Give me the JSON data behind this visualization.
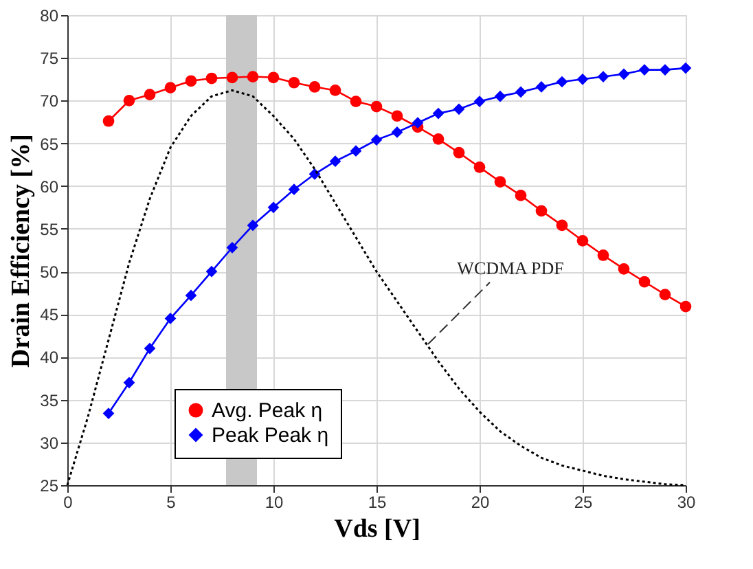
{
  "chart_data": {
    "type": "line",
    "xlabel": "Vds [V]",
    "ylabel": "Drain Efficiency [%]",
    "xlim": [
      0,
      30
    ],
    "ylim": [
      25,
      80
    ],
    "xticks": [
      0,
      5,
      10,
      15,
      20,
      25,
      30
    ],
    "yticks": [
      25,
      30,
      35,
      40,
      45,
      50,
      55,
      60,
      65,
      70,
      75,
      80
    ],
    "grid": true,
    "legend": "bottom left",
    "series": [
      {
        "name": "Avg. Peak η",
        "color": "#ff0000",
        "marker": "circle",
        "line_style": "solid",
        "x": [
          2,
          3,
          4,
          5,
          6,
          7,
          8,
          9,
          10,
          11,
          12,
          13,
          14,
          15,
          16,
          17,
          18,
          19,
          20,
          21,
          22,
          23,
          24,
          25,
          26,
          27,
          28,
          29,
          30
        ],
        "values": [
          67.6,
          70.0,
          70.7,
          71.5,
          72.3,
          72.6,
          72.7,
          72.8,
          72.7,
          72.1,
          71.6,
          71.2,
          69.9,
          69.3,
          68.2,
          66.9,
          65.5,
          63.9,
          62.2,
          60.5,
          58.9,
          57.1,
          55.4,
          53.6,
          51.9,
          50.3,
          48.8,
          47.3,
          45.9
        ]
      },
      {
        "name": "Peak Peak η",
        "color": "#0000ff",
        "marker": "diamond",
        "line_style": "solid",
        "x": [
          2,
          3,
          4,
          5,
          6,
          7,
          8,
          9,
          10,
          11,
          12,
          13,
          14,
          15,
          16,
          17,
          18,
          19,
          20,
          21,
          22,
          23,
          24,
          25,
          26,
          27,
          28,
          29,
          30
        ],
        "values": [
          33.4,
          37.0,
          41.0,
          44.5,
          47.2,
          50.0,
          52.8,
          55.4,
          57.5,
          59.6,
          61.4,
          62.9,
          64.1,
          65.4,
          66.3,
          67.4,
          68.5,
          69.0,
          69.9,
          70.5,
          71.0,
          71.6,
          72.2,
          72.5,
          72.8,
          73.1,
          73.6,
          73.6,
          73.8
        ]
      },
      {
        "color": "#000000",
        "marker": "none",
        "line_style": "dotted",
        "x": [
          0,
          1,
          2,
          3,
          4,
          5,
          6,
          7,
          8,
          9,
          10,
          11,
          12,
          13,
          14,
          15,
          16,
          17,
          18,
          19,
          20,
          21,
          22,
          23,
          24,
          25,
          26,
          27,
          28,
          29,
          30
        ],
        "values": [
          25,
          33,
          42,
          51,
          58.5,
          64.5,
          68.2,
          70.5,
          71.2,
          70.5,
          68.2,
          65.5,
          62,
          58,
          54,
          50,
          46.5,
          43,
          39.5,
          36.3,
          33.6,
          31.3,
          29.6,
          28.2,
          27.3,
          26.7,
          26.1,
          25.7,
          25.4,
          25.1,
          25.0
        ]
      }
    ],
    "bands": [
      {
        "axis": "x",
        "from": 7.7,
        "to": 9.2,
        "color": "#c8c8c8"
      }
    ],
    "annotations": [
      {
        "text": "WCDMA PDF",
        "x": 17.5,
        "y": 41.5
      }
    ]
  }
}
